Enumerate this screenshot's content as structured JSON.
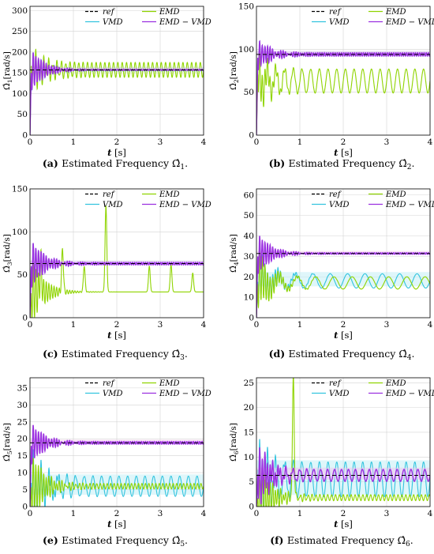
{
  "colors": {
    "ref": "#000000",
    "emd": "#8fd400",
    "vmd": "#33c4de",
    "emd_vmd": "#9b30e0",
    "band_vmd": "#bfeef6",
    "band_emd_vmd": "#f2c4ec",
    "grid": "#d4d4d4"
  },
  "legend_labels": {
    "ref": "ref",
    "emd": "EMD",
    "vmd": "VMD",
    "emd_vmd": "EMD − VMD"
  },
  "chart_data": [
    {
      "type": "line",
      "caption_tag": "(a)",
      "caption_text": "Estimated Frequency",
      "caption_symbol": "Ω̂",
      "caption_sub": "1",
      "caption_end": ".",
      "xlabel": "t",
      "xunit": "[s]",
      "ylabel_sym": "Ω̂",
      "ylabel_sub": "1",
      "ylabel_unit": "[rad/s]",
      "xlim": [
        0,
        4
      ],
      "ylim": [
        0,
        310
      ],
      "xticks": [
        0,
        1,
        2,
        3,
        4
      ],
      "yticks": [
        0,
        50,
        100,
        150,
        200,
        250,
        300
      ],
      "legend": "top-right",
      "grid": true,
      "series": [
        {
          "key": "ref",
          "target": 157
        },
        {
          "key": "emd",
          "target": 157,
          "mean": 157,
          "amp": 18,
          "period": 0.1
        },
        {
          "key": "vmd",
          "target": 157,
          "mean": 157,
          "amp": 3,
          "period": 0.05
        },
        {
          "key": "emd_vmd",
          "target": 157,
          "mean": 157,
          "amp": 1.5,
          "period": 0.05
        }
      ]
    },
    {
      "type": "line",
      "caption_tag": "(b)",
      "caption_text": "Estimated Frequency",
      "caption_symbol": "Ω̂",
      "caption_sub": "2",
      "caption_end": ".",
      "xlabel": "t",
      "xunit": "[s]",
      "ylabel_sym": "Ω̂",
      "ylabel_sub": "2",
      "ylabel_unit": "[rad/s]",
      "xlim": [
        0,
        4
      ],
      "ylim": [
        0,
        150
      ],
      "xticks": [
        0,
        1,
        2,
        3,
        4
      ],
      "yticks": [
        0,
        50,
        100,
        150
      ],
      "legend": "top-right",
      "grid": true,
      "series": [
        {
          "key": "ref",
          "target": 94
        },
        {
          "key": "emd",
          "target": 63,
          "mean": 63,
          "amp": 14,
          "period": 0.2
        },
        {
          "key": "vmd",
          "target": 94,
          "mean": 94,
          "amp": 2,
          "period": 0.05
        },
        {
          "key": "emd_vmd",
          "target": 94,
          "mean": 94,
          "amp": 2,
          "period": 0.05
        }
      ]
    },
    {
      "type": "line",
      "caption_tag": "(c)",
      "caption_text": "Estimated Frequency",
      "caption_symbol": "Ω̂",
      "caption_sub": "3",
      "caption_end": ".",
      "xlabel": "t",
      "xunit": "[s]",
      "ylabel_sym": "Ω̂",
      "ylabel_sub": "3",
      "ylabel_unit": "[rad/s]",
      "xlim": [
        0,
        4
      ],
      "ylim": [
        0,
        150
      ],
      "xticks": [
        0,
        1,
        2,
        3,
        4
      ],
      "yticks": [
        0,
        50,
        100,
        150
      ],
      "legend": "top-right",
      "grid": true,
      "series": [
        {
          "key": "ref",
          "target": 63
        },
        {
          "key": "emd",
          "target": 30,
          "mean": 30,
          "amp": 0,
          "period": 0.5
        },
        {
          "key": "vmd",
          "target": 63,
          "mean": 63,
          "amp": 1.5,
          "period": 0.05
        },
        {
          "key": "emd_vmd",
          "target": 63,
          "mean": 63,
          "amp": 1.5,
          "period": 0.05
        }
      ],
      "spikes": [
        [
          0.25,
          62
        ],
        [
          0.75,
          80
        ],
        [
          1.25,
          60
        ],
        [
          1.75,
          130
        ],
        [
          2.75,
          60
        ],
        [
          3.25,
          62
        ],
        [
          3.75,
          52
        ]
      ]
    },
    {
      "type": "line",
      "caption_tag": "(d)",
      "caption_text": "Estimated Frequency",
      "caption_symbol": "Ω̂",
      "caption_sub": "4",
      "caption_end": ".",
      "xlabel": "t",
      "xunit": "[s]",
      "ylabel_sym": "Ω̂",
      "ylabel_sub": "4",
      "ylabel_unit": "[rad/s]",
      "xlim": [
        0,
        4
      ],
      "ylim": [
        0,
        63
      ],
      "xticks": [
        0,
        1,
        2,
        3,
        4
      ],
      "yticks": [
        0,
        10,
        20,
        30,
        40,
        50,
        60
      ],
      "legend": "top-right",
      "grid": true,
      "series": [
        {
          "key": "ref",
          "target": 31.4
        },
        {
          "key": "emd",
          "target": 17,
          "mean": 17,
          "amp": 3,
          "period": 0.42
        },
        {
          "key": "vmd",
          "target": 18,
          "mean": 18,
          "amp": 3.5,
          "period": 0.4
        },
        {
          "key": "emd_vmd",
          "target": 31.4,
          "mean": 31.4,
          "amp": 0.4,
          "period": 0.05
        }
      ]
    },
    {
      "type": "line",
      "caption_tag": "(e)",
      "caption_text": "Estimated Frequency",
      "caption_symbol": "Ω̂",
      "caption_sub": "5",
      "caption_end": ".",
      "xlabel": "t",
      "xunit": "[s]",
      "ylabel_sym": "Ω̂",
      "ylabel_sub": "5",
      "ylabel_unit": "[rad/s]",
      "xlim": [
        0,
        4
      ],
      "ylim": [
        0,
        38
      ],
      "xticks": [
        0,
        1,
        2,
        3,
        4
      ],
      "yticks": [
        0,
        5,
        10,
        15,
        20,
        25,
        30,
        35
      ],
      "legend": "top-right",
      "grid": true,
      "series": [
        {
          "key": "ref",
          "target": 18.8
        },
        {
          "key": "emd",
          "target": 6,
          "mean": 6,
          "amp": 0.8,
          "period": 0.08
        },
        {
          "key": "vmd",
          "target": 6,
          "mean": 6,
          "amp": 3,
          "period": 0.2
        },
        {
          "key": "emd_vmd",
          "target": 18.8,
          "mean": 18.8,
          "amp": 0.4,
          "period": 0.05
        }
      ]
    },
    {
      "type": "line",
      "caption_tag": "(f)",
      "caption_text": "Estimated Frequency",
      "caption_symbol": "Ω̂",
      "caption_sub": "6",
      "caption_end": ".",
      "xlabel": "t",
      "xunit": "[s]",
      "ylabel_sym": "Ω̂",
      "ylabel_sub": "6",
      "ylabel_unit": "[rad/s]",
      "xlim": [
        0,
        4
      ],
      "ylim": [
        0,
        26
      ],
      "xticks": [
        0,
        1,
        2,
        3,
        4
      ],
      "yticks": [
        0,
        5,
        10,
        15,
        20,
        25
      ],
      "legend": "top-right",
      "grid": true,
      "series": [
        {
          "key": "ref",
          "target": 6.3
        },
        {
          "key": "emd",
          "target": 1.5,
          "mean": 1.8,
          "amp": 0.6,
          "period": 0.09
        },
        {
          "key": "vmd",
          "target": 5.5,
          "mean": 5.5,
          "amp": 3.5,
          "period": 0.2
        },
        {
          "key": "emd_vmd",
          "target": 6.3,
          "mean": 6.3,
          "amp": 1.2,
          "period": 0.16
        }
      ],
      "spikes": [
        [
          0.85,
          26
        ]
      ]
    }
  ]
}
